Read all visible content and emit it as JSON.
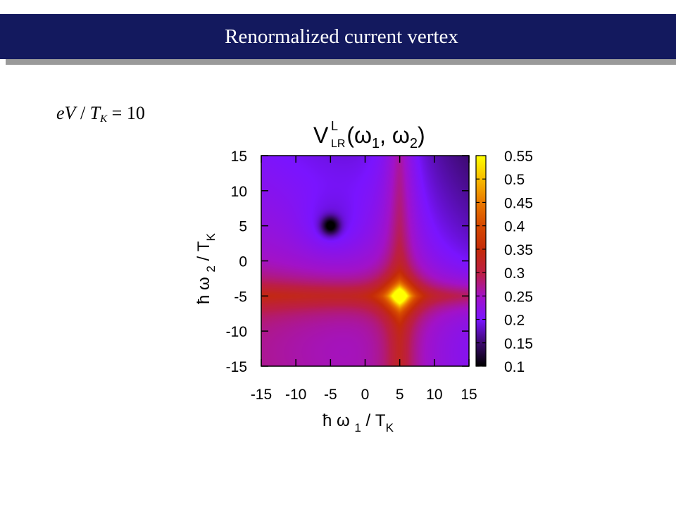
{
  "banner": {
    "title": "Renormalized current vertex"
  },
  "annotation": {
    "lhs_e": "e",
    "lhs_V": "V",
    "slash": " / ",
    "T": "T",
    "T_sub": "K",
    "equals": " = ",
    "value": "10"
  },
  "chart_data": {
    "type": "heatmap",
    "title": {
      "main": "V",
      "sup": "L",
      "sub": "LR",
      "args": "(ω",
      "arg1_sub": "1",
      "sep": ", ω",
      "arg2_sub": "2",
      "close": ")"
    },
    "xlabel": {
      "prefix": "ħ ω ",
      "sub": "1",
      "mid": " / T",
      "unit_sub": "K"
    },
    "ylabel": {
      "prefix": "ħ ω ",
      "sub": "2",
      "mid": " / T",
      "unit_sub": "K"
    },
    "x_range": [
      -15,
      15
    ],
    "y_range": [
      -15,
      15
    ],
    "x_ticks": [
      "-15",
      "-10",
      "-5",
      "0",
      "5",
      "10",
      "15"
    ],
    "y_ticks": [
      "15",
      "10",
      "5",
      "0",
      "-5",
      "-10",
      "-15"
    ],
    "colorbar": {
      "range": [
        0.1,
        0.55
      ],
      "ticks": [
        "0.55",
        "0.5",
        "0.45",
        "0.4",
        "0.35",
        "0.3",
        "0.25",
        "0.2",
        "0.15",
        "0.1"
      ]
    },
    "features": {
      "peak": {
        "w1": 5,
        "w2": -5,
        "value": 0.55
      },
      "minimum": {
        "w1": -5,
        "w2": 5,
        "value": 0.1
      },
      "background_value": 0.2,
      "ridges": [
        "w1 = 5",
        "w2 = -5"
      ]
    }
  }
}
